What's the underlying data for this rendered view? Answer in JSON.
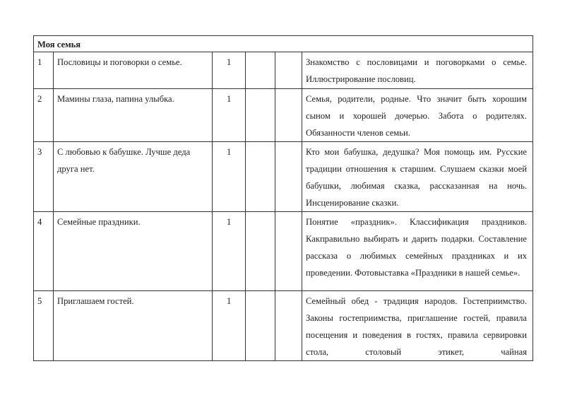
{
  "section_title": "Моя семья",
  "rows": [
    {
      "num": "1",
      "topic": "Пословицы и поговорки о семье.",
      "hours": "1",
      "description": "Знакомство с пословицами и поговорками о семье. Иллюстрирование пословиц."
    },
    {
      "num": "2",
      "topic": "Мамины глаза, папина улыбка.",
      "hours": "1",
      "description": "Семья, родители, родные. Что значит быть хорошим сыном и хорошей дочерью.  Забота о родителях. Обязанности членов семьи."
    },
    {
      "num": "3",
      "topic": "С любовью к бабушке. Лучше деда друга нет.",
      "hours": "1",
      "description": "Кто мои бабушка, дедушка? Моя помощь им. Русские традиции отношения к старшим. Слушаем сказки моей бабушки, любимая сказка, рассказанная на ночь. Инсценирование сказки."
    },
    {
      "num": "4",
      "topic": "Семейные праздники.",
      "hours": "1",
      "description": "Понятие «праздник». Классификация праздников. Какправильно выбирать и дарить подарки. Составление рассказа о любимых семейных праздниках и их проведении. Фотовыставка «Праздники в нашей семье»."
    },
    {
      "num": "5",
      "topic": "Приглашаем гостей.",
      "hours": "1",
      "description": "Семейный обед - традиция народов. Гостеприимство. Законы гостеприимства, приглашение гостей, правила посещения и поведения в гостях, правила сервировки стола, столовый этикет, чайная"
    }
  ]
}
